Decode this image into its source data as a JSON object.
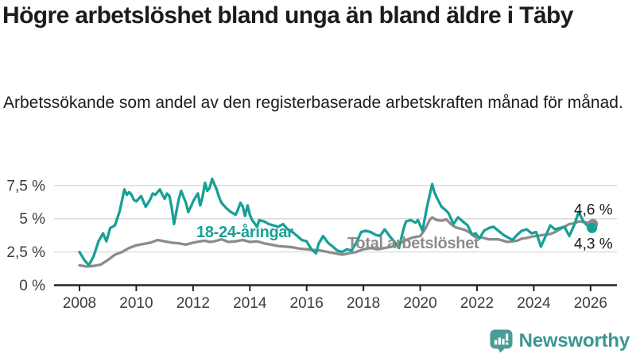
{
  "header": {
    "title": "Högre arbetslöshet bland unga än bland äldre i Täby",
    "subtitle": "Arbetssökande som andel av den registerbaserade arbetskraften månad för månad."
  },
  "chart_data": {
    "type": "line",
    "title": "Högre arbetslöshet bland unga än bland äldre i Täby",
    "subtitle": "Arbetssökande som andel av den registerbaserade arbetskraften månad för månad.",
    "unit": "%",
    "xlabel": "",
    "ylabel": "",
    "grid": true,
    "legend_position": "inline-labels",
    "ylim": [
      0,
      8.4
    ],
    "xlim": [
      2007.1,
      2026.9
    ],
    "y_ticks": [
      {
        "value": 0,
        "label": "0 %"
      },
      {
        "value": 2.5,
        "label": "2,5 %"
      },
      {
        "value": 5,
        "label": "5 %"
      },
      {
        "value": 7.5,
        "label": "7,5 %"
      }
    ],
    "x_ticks": [
      {
        "value": 2008,
        "label": "2008"
      },
      {
        "value": 2010,
        "label": "2010"
      },
      {
        "value": 2012,
        "label": "2012"
      },
      {
        "value": 2014,
        "label": "2014"
      },
      {
        "value": 2016,
        "label": "2016"
      },
      {
        "value": 2018,
        "label": "2018"
      },
      {
        "value": 2020,
        "label": "2020"
      },
      {
        "value": 2022,
        "label": "2022"
      },
      {
        "value": 2024,
        "label": "2024"
      },
      {
        "value": 2026,
        "label": "2026"
      }
    ],
    "colors": {
      "youth": "#18a096",
      "total": "#8c8c8c",
      "axis": "#222222",
      "gridline": "#d8d8d8",
      "tick_text": "#3c3c3c",
      "end_label_text": "#1c1c1a"
    },
    "series": [
      {
        "id": "total",
        "name": "Total arbetslöshet",
        "color": "#8c8c8c",
        "end_label": "4,6 %",
        "end_value": 4.6,
        "points": [
          [
            2008.0,
            1.5
          ],
          [
            2008.25,
            1.4
          ],
          [
            2008.5,
            1.45
          ],
          [
            2008.75,
            1.55
          ],
          [
            2009.0,
            1.9
          ],
          [
            2009.25,
            2.3
          ],
          [
            2009.5,
            2.5
          ],
          [
            2009.75,
            2.8
          ],
          [
            2010.0,
            3.0
          ],
          [
            2010.25,
            3.1
          ],
          [
            2010.5,
            3.2
          ],
          [
            2010.75,
            3.4
          ],
          [
            2011.0,
            3.3
          ],
          [
            2011.25,
            3.2
          ],
          [
            2011.5,
            3.15
          ],
          [
            2011.75,
            3.05
          ],
          [
            2012.0,
            3.2
          ],
          [
            2012.25,
            3.3
          ],
          [
            2012.42,
            3.35
          ],
          [
            2012.58,
            3.25
          ],
          [
            2012.75,
            3.3
          ],
          [
            2013.0,
            3.45
          ],
          [
            2013.25,
            3.25
          ],
          [
            2013.5,
            3.3
          ],
          [
            2013.75,
            3.4
          ],
          [
            2014.0,
            3.25
          ],
          [
            2014.25,
            3.3
          ],
          [
            2014.5,
            3.15
          ],
          [
            2014.75,
            3.05
          ],
          [
            2015.0,
            2.95
          ],
          [
            2015.25,
            2.9
          ],
          [
            2015.5,
            2.85
          ],
          [
            2015.75,
            2.75
          ],
          [
            2016.0,
            2.7
          ],
          [
            2016.25,
            2.65
          ],
          [
            2016.5,
            2.6
          ],
          [
            2016.75,
            2.5
          ],
          [
            2017.0,
            2.4
          ],
          [
            2017.25,
            2.3
          ],
          [
            2017.5,
            2.4
          ],
          [
            2017.75,
            2.5
          ],
          [
            2018.0,
            2.7
          ],
          [
            2018.25,
            2.8
          ],
          [
            2018.5,
            2.7
          ],
          [
            2018.75,
            2.8
          ],
          [
            2019.0,
            2.9
          ],
          [
            2019.25,
            3.1
          ],
          [
            2019.5,
            3.4
          ],
          [
            2019.75,
            3.6
          ],
          [
            2020.0,
            3.7
          ],
          [
            2020.17,
            4.2
          ],
          [
            2020.33,
            4.9
          ],
          [
            2020.42,
            5.1
          ],
          [
            2020.58,
            4.9
          ],
          [
            2020.75,
            4.85
          ],
          [
            2020.92,
            4.95
          ],
          [
            2021.08,
            4.6
          ],
          [
            2021.25,
            4.35
          ],
          [
            2021.42,
            4.25
          ],
          [
            2021.58,
            4.15
          ],
          [
            2021.75,
            3.95
          ],
          [
            2021.92,
            3.65
          ],
          [
            2022.08,
            3.6
          ],
          [
            2022.25,
            3.55
          ],
          [
            2022.42,
            3.45
          ],
          [
            2022.58,
            3.45
          ],
          [
            2022.75,
            3.45
          ],
          [
            2022.92,
            3.35
          ],
          [
            2023.08,
            3.25
          ],
          [
            2023.25,
            3.3
          ],
          [
            2023.42,
            3.35
          ],
          [
            2023.58,
            3.5
          ],
          [
            2023.75,
            3.55
          ],
          [
            2023.92,
            3.65
          ],
          [
            2024.08,
            3.7
          ],
          [
            2024.25,
            3.75
          ],
          [
            2024.42,
            3.8
          ],
          [
            2024.58,
            3.85
          ],
          [
            2024.75,
            4.0
          ],
          [
            2024.92,
            4.2
          ],
          [
            2025.08,
            4.4
          ],
          [
            2025.25,
            4.6
          ],
          [
            2025.42,
            4.65
          ],
          [
            2025.58,
            4.8
          ],
          [
            2025.75,
            4.75
          ],
          [
            2025.92,
            4.7
          ],
          [
            2026.08,
            4.6
          ]
        ]
      },
      {
        "id": "youth",
        "name": "18-24-åringar",
        "color": "#18a096",
        "end_label": "4,3 %",
        "end_value": 4.3,
        "points": [
          [
            2008.0,
            2.5
          ],
          [
            2008.17,
            1.9
          ],
          [
            2008.33,
            1.5
          ],
          [
            2008.5,
            2.2
          ],
          [
            2008.67,
            3.3
          ],
          [
            2008.83,
            3.9
          ],
          [
            2008.95,
            3.3
          ],
          [
            2009.08,
            4.3
          ],
          [
            2009.25,
            4.5
          ],
          [
            2009.42,
            5.6
          ],
          [
            2009.58,
            7.2
          ],
          [
            2009.67,
            6.8
          ],
          [
            2009.75,
            7.0
          ],
          [
            2009.83,
            6.8
          ],
          [
            2009.92,
            6.4
          ],
          [
            2010.0,
            6.3
          ],
          [
            2010.08,
            6.5
          ],
          [
            2010.17,
            6.7
          ],
          [
            2010.25,
            6.3
          ],
          [
            2010.33,
            5.9
          ],
          [
            2010.42,
            6.2
          ],
          [
            2010.5,
            6.5
          ],
          [
            2010.58,
            6.9
          ],
          [
            2010.67,
            6.8
          ],
          [
            2010.75,
            7.0
          ],
          [
            2010.83,
            7.2
          ],
          [
            2010.92,
            6.8
          ],
          [
            2011.0,
            6.5
          ],
          [
            2011.08,
            6.9
          ],
          [
            2011.17,
            6.7
          ],
          [
            2011.25,
            5.8
          ],
          [
            2011.33,
            4.6
          ],
          [
            2011.42,
            5.6
          ],
          [
            2011.5,
            6.5
          ],
          [
            2011.58,
            7.1
          ],
          [
            2011.67,
            6.6
          ],
          [
            2011.75,
            6.2
          ],
          [
            2011.83,
            5.5
          ],
          [
            2011.92,
            5.9
          ],
          [
            2012.0,
            6.3
          ],
          [
            2012.08,
            6.6
          ],
          [
            2012.17,
            6.9
          ],
          [
            2012.25,
            6.0
          ],
          [
            2012.33,
            6.6
          ],
          [
            2012.42,
            7.7
          ],
          [
            2012.5,
            7.1
          ],
          [
            2012.58,
            7.3
          ],
          [
            2012.67,
            8.0
          ],
          [
            2012.75,
            7.6
          ],
          [
            2012.83,
            7.2
          ],
          [
            2012.92,
            6.6
          ],
          [
            2013.0,
            6.2
          ],
          [
            2013.17,
            5.8
          ],
          [
            2013.33,
            5.5
          ],
          [
            2013.5,
            5.3
          ],
          [
            2013.58,
            5.7
          ],
          [
            2013.67,
            6.2
          ],
          [
            2013.75,
            5.9
          ],
          [
            2013.83,
            5.2
          ],
          [
            2013.92,
            6.0
          ],
          [
            2014.0,
            5.3
          ],
          [
            2014.08,
            4.9
          ],
          [
            2014.25,
            4.4
          ],
          [
            2014.33,
            4.9
          ],
          [
            2014.5,
            4.8
          ],
          [
            2014.67,
            4.6
          ],
          [
            2014.83,
            4.5
          ],
          [
            2015.0,
            4.4
          ],
          [
            2015.17,
            4.6
          ],
          [
            2015.33,
            4.2
          ],
          [
            2015.5,
            4.0
          ],
          [
            2015.67,
            3.7
          ],
          [
            2015.83,
            3.4
          ],
          [
            2016.0,
            3.3
          ],
          [
            2016.08,
            3.0
          ],
          [
            2016.17,
            2.7
          ],
          [
            2016.33,
            2.4
          ],
          [
            2016.42,
            3.1
          ],
          [
            2016.58,
            3.7
          ],
          [
            2016.75,
            3.2
          ],
          [
            2016.92,
            2.9
          ],
          [
            2017.08,
            2.6
          ],
          [
            2017.25,
            2.5
          ],
          [
            2017.42,
            2.7
          ],
          [
            2017.58,
            2.6
          ],
          [
            2017.75,
            3.2
          ],
          [
            2017.92,
            4.0
          ],
          [
            2018.08,
            4.1
          ],
          [
            2018.25,
            4.0
          ],
          [
            2018.42,
            3.8
          ],
          [
            2018.58,
            3.7
          ],
          [
            2018.75,
            4.2
          ],
          [
            2018.92,
            3.7
          ],
          [
            2019.08,
            3.3
          ],
          [
            2019.25,
            2.8
          ],
          [
            2019.42,
            4.3
          ],
          [
            2019.5,
            4.8
          ],
          [
            2019.67,
            4.9
          ],
          [
            2019.83,
            4.7
          ],
          [
            2019.92,
            4.9
          ],
          [
            2020.0,
            4.5
          ],
          [
            2020.08,
            4.1
          ],
          [
            2020.25,
            6.0
          ],
          [
            2020.42,
            7.6
          ],
          [
            2020.5,
            7.0
          ],
          [
            2020.58,
            6.6
          ],
          [
            2020.75,
            5.9
          ],
          [
            2020.92,
            5.6
          ],
          [
            2021.0,
            5.4
          ],
          [
            2021.17,
            4.6
          ],
          [
            2021.33,
            5.1
          ],
          [
            2021.5,
            4.8
          ],
          [
            2021.67,
            4.5
          ],
          [
            2021.83,
            3.8
          ],
          [
            2021.95,
            3.9
          ],
          [
            2022.08,
            3.5
          ],
          [
            2022.25,
            4.1
          ],
          [
            2022.42,
            4.3
          ],
          [
            2022.58,
            4.4
          ],
          [
            2022.75,
            4.1
          ],
          [
            2022.92,
            3.8
          ],
          [
            2023.08,
            3.6
          ],
          [
            2023.25,
            3.4
          ],
          [
            2023.42,
            3.8
          ],
          [
            2023.58,
            4.1
          ],
          [
            2023.75,
            4.2
          ],
          [
            2023.92,
            3.9
          ],
          [
            2024.08,
            4.0
          ],
          [
            2024.25,
            2.9
          ],
          [
            2024.42,
            3.7
          ],
          [
            2024.58,
            4.5
          ],
          [
            2024.75,
            4.2
          ],
          [
            2024.92,
            4.3
          ],
          [
            2025.08,
            4.4
          ],
          [
            2025.25,
            3.7
          ],
          [
            2025.42,
            4.5
          ],
          [
            2025.58,
            5.5
          ],
          [
            2025.75,
            4.8
          ],
          [
            2025.92,
            4.4
          ],
          [
            2026.05,
            4.3
          ]
        ]
      }
    ]
  },
  "footer": {
    "brand": "Newsworthy",
    "brand_color": "#3d968f",
    "logo_color": "#4a9c96",
    "logo_icon": "newsworthy-chart-bubble-icon"
  }
}
